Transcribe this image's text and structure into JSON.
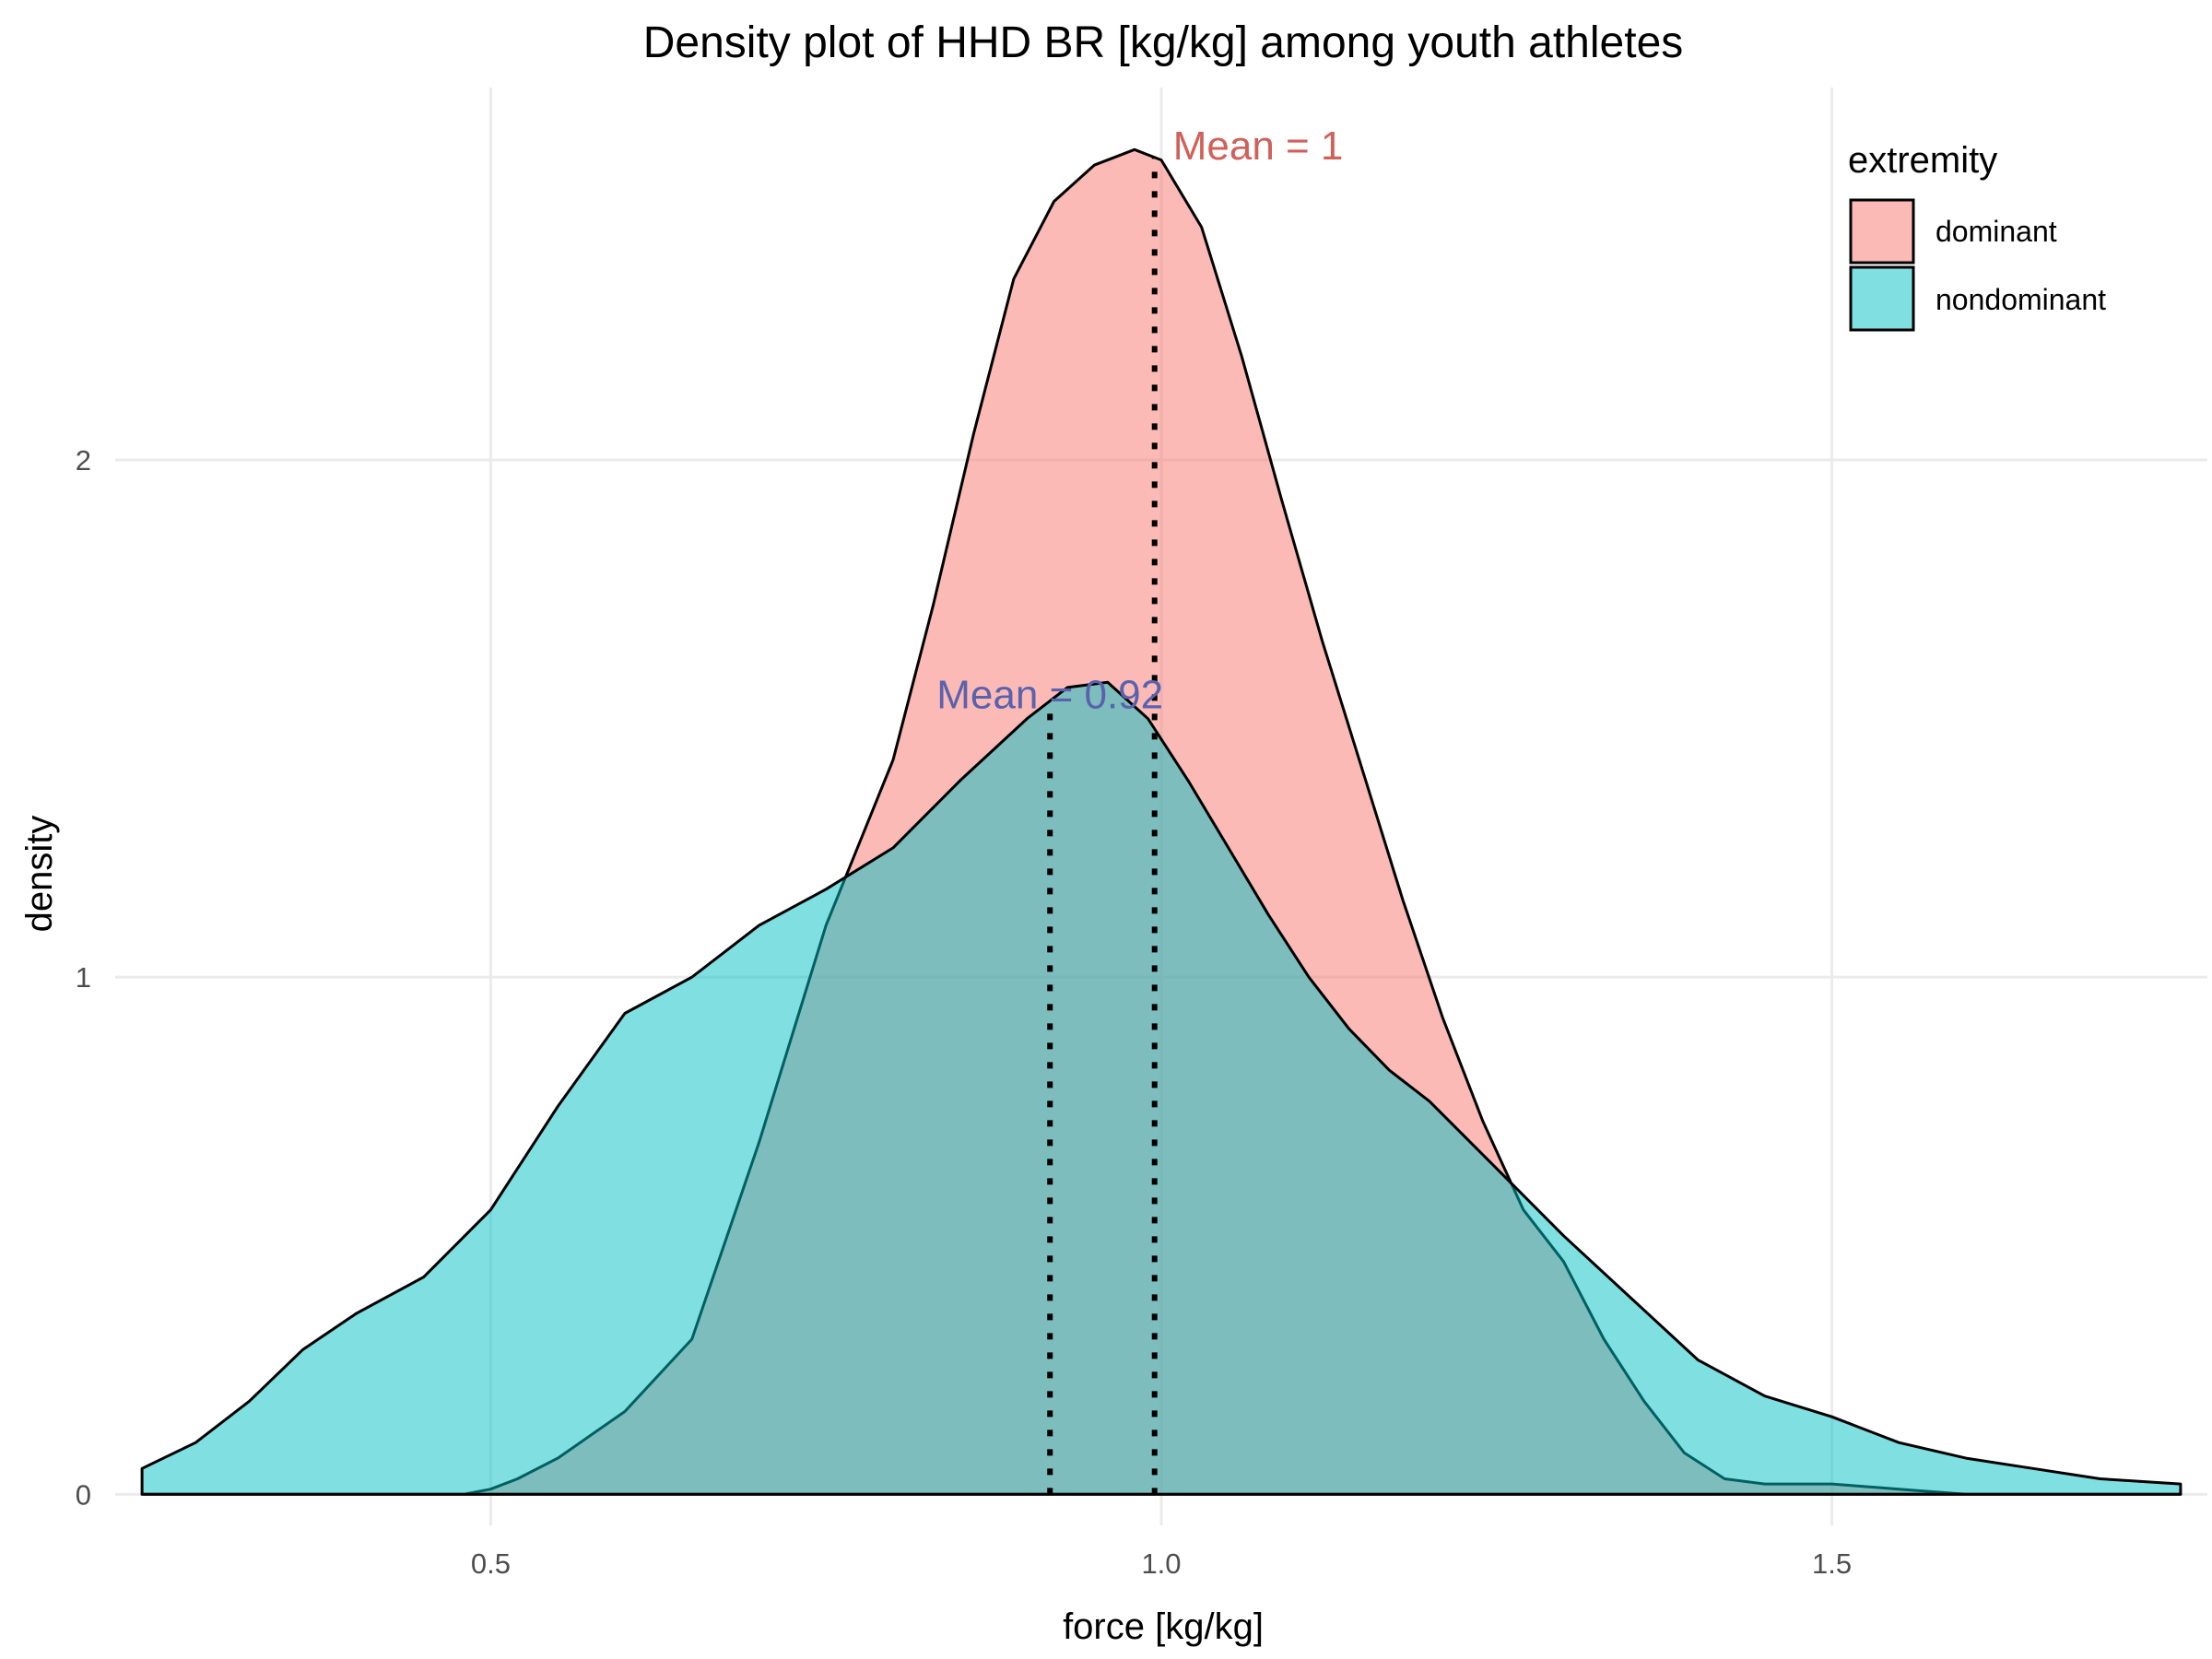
{
  "chart_data": {
    "type": "area",
    "title": "Density plot of HHD BR [kg/kg] among youth athletes",
    "xlabel": "force [kg/kg]",
    "ylabel": "density",
    "xlim": [
      0.22,
      1.78
    ],
    "ylim": [
      -0.06,
      2.72
    ],
    "x_ticks": [
      0.5,
      1.0,
      1.5
    ],
    "x_tick_labels": [
      "0.5",
      "1.0",
      "1.5"
    ],
    "y_ticks": [
      0,
      1,
      2
    ],
    "y_tick_labels": [
      "0",
      "1",
      "2"
    ],
    "grid": true,
    "legend": {
      "title": "extremity",
      "position": "top-right"
    },
    "series": [
      {
        "name": "dominant",
        "color": "#F8766D",
        "mean": 1.0,
        "mean_line_x": 0.995,
        "mean_label": "Mean =  1",
        "x": [
          0.24,
          0.3,
          0.35,
          0.4,
          0.45,
          0.48,
          0.5,
          0.52,
          0.55,
          0.6,
          0.65,
          0.7,
          0.75,
          0.8,
          0.83,
          0.86,
          0.89,
          0.92,
          0.95,
          0.98,
          1.0,
          1.03,
          1.06,
          1.09,
          1.12,
          1.15,
          1.18,
          1.21,
          1.24,
          1.27,
          1.3,
          1.33,
          1.36,
          1.39,
          1.42,
          1.45,
          1.5,
          1.55,
          1.6,
          1.65,
          1.7,
          1.76
        ],
        "y": [
          0.0,
          0.0,
          0.0,
          0.0,
          0.0,
          0.0,
          0.01,
          0.03,
          0.07,
          0.16,
          0.3,
          0.68,
          1.1,
          1.42,
          1.72,
          2.05,
          2.35,
          2.5,
          2.57,
          2.6,
          2.58,
          2.45,
          2.2,
          1.92,
          1.65,
          1.4,
          1.15,
          0.92,
          0.72,
          0.55,
          0.45,
          0.3,
          0.18,
          0.08,
          0.03,
          0.02,
          0.02,
          0.01,
          0.0,
          0.0,
          0.0,
          0.0
        ]
      },
      {
        "name": "nondominant",
        "color": "#00BFC4",
        "mean": 0.92,
        "mean_line_x": 0.917,
        "mean_label": "Mean =  0.92",
        "x": [
          0.24,
          0.28,
          0.32,
          0.36,
          0.4,
          0.45,
          0.5,
          0.55,
          0.6,
          0.65,
          0.7,
          0.75,
          0.8,
          0.85,
          0.9,
          0.93,
          0.96,
          0.99,
          1.02,
          1.05,
          1.08,
          1.11,
          1.14,
          1.17,
          1.2,
          1.25,
          1.3,
          1.35,
          1.4,
          1.45,
          1.5,
          1.55,
          1.6,
          1.65,
          1.7,
          1.76
        ],
        "y": [
          0.05,
          0.1,
          0.18,
          0.28,
          0.35,
          0.42,
          0.55,
          0.75,
          0.93,
          1.0,
          1.1,
          1.17,
          1.25,
          1.38,
          1.5,
          1.56,
          1.57,
          1.5,
          1.38,
          1.25,
          1.12,
          1.0,
          0.9,
          0.82,
          0.76,
          0.63,
          0.5,
          0.38,
          0.26,
          0.19,
          0.15,
          0.1,
          0.07,
          0.05,
          0.03,
          0.02
        ]
      }
    ]
  }
}
